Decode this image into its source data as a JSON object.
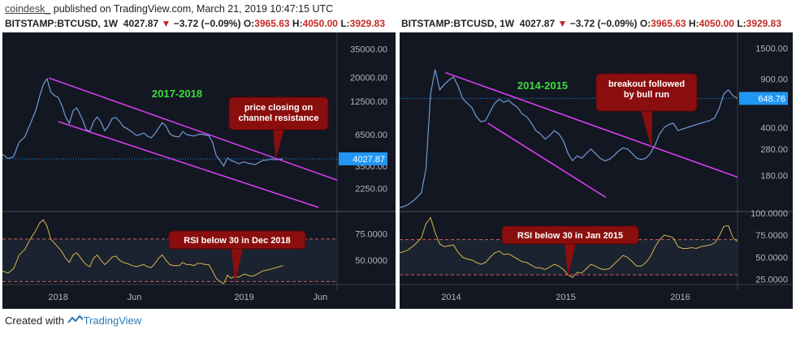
{
  "header": {
    "brand": "coindesk_",
    "published": "published on TradingView.com, March 21, 2019 10:47:15 UTC",
    "symbol_line": {
      "symbol": "BITSTAMP:BTCUSD, 1W",
      "last": "4027.87",
      "change": "−3.72 (−0.09%)",
      "o_label": "O:",
      "o": "3965.63",
      "h_label": "H:",
      "h": "4050.00",
      "l_label": "L:",
      "l": "3929.83"
    }
  },
  "footer": {
    "created": "Created with",
    "tv": "TradingView"
  },
  "colors": {
    "bg": "#131722",
    "price": "#6f9bd1",
    "channel": "#e040fb",
    "rsi": "#d6b64a",
    "callout": "#8b0e0e",
    "label_green": "#3ddc3d",
    "price_tag": "#2196f3"
  },
  "chart_data": [
    {
      "type": "line",
      "title": "2017-2018",
      "y_scale": "log",
      "y_ticks": [
        "35000.00",
        "20000.00",
        "12500.00",
        "6500.00",
        "3500.00",
        "2250.00"
      ],
      "y_tick_values": [
        35000,
        20000,
        12500,
        6500,
        3500,
        2250
      ],
      "ylim": [
        1450,
        47000
      ],
      "x_ticks": [
        "2018",
        "Jun",
        "2019",
        "Jun"
      ],
      "x_tick_values": [
        2018.0,
        2018.41,
        2019.0,
        2019.41
      ],
      "xlim": [
        2017.7,
        2019.5
      ],
      "last_price_tag": "4027.87",
      "series": [
        {
          "x": [
            2017.7,
            2017.73,
            2017.76,
            2017.79,
            2017.82,
            2017.85,
            2017.88,
            2017.9,
            2017.92,
            2017.94,
            2017.96,
            2017.98,
            2018.0,
            2018.02,
            2018.04,
            2018.06,
            2018.08,
            2018.1,
            2018.13,
            2018.15,
            2018.17,
            2018.19,
            2018.21,
            2018.23,
            2018.25,
            2018.27,
            2018.29,
            2018.31,
            2018.33,
            2018.35,
            2018.37,
            2018.4,
            2018.42,
            2018.44,
            2018.46,
            2018.48,
            2018.5,
            2018.52,
            2018.54,
            2018.56,
            2018.58,
            2018.6,
            2018.62,
            2018.65,
            2018.67,
            2018.69,
            2018.71,
            2018.73,
            2018.75,
            2018.77,
            2018.79,
            2018.81,
            2018.83,
            2018.85,
            2018.87,
            2018.89,
            2018.91,
            2018.93,
            2018.95,
            2018.97,
            2019.0,
            2019.02,
            2019.04,
            2019.06,
            2019.08,
            2019.1,
            2019.13,
            2019.15,
            2019.17,
            2019.19,
            2019.21
          ],
          "values": [
            4400,
            4050,
            4200,
            5600,
            6200,
            8000,
            10500,
            13800,
            17500,
            19500,
            15000,
            14000,
            13500,
            11500,
            9200,
            8100,
            10400,
            11000,
            8800,
            7200,
            6900,
            8400,
            9200,
            8300,
            7000,
            7700,
            8900,
            9100,
            8400,
            7600,
            7300,
            6800,
            6400,
            6500,
            6700,
            6300,
            6100,
            6600,
            7400,
            8200,
            7700,
            6600,
            6300,
            6200,
            6900,
            6500,
            6400,
            6300,
            6500,
            6550,
            6450,
            6350,
            5600,
            4300,
            3900,
            3500,
            4100,
            3900,
            3800,
            3650,
            3800,
            3700,
            3650,
            3600,
            3750,
            3900,
            3950,
            4000,
            3950,
            4000,
            4027
          ]
        }
      ],
      "rsi": {
        "y_ticks": [
          "75.0000",
          "50.0000"
        ],
        "y_tick_values": [
          75,
          50
        ],
        "ylim": [
          28,
          95
        ],
        "levels": [
          70,
          30
        ],
        "values": [
          40,
          38,
          42,
          55,
          60,
          70,
          78,
          85,
          88,
          82,
          70,
          66,
          62,
          58,
          52,
          48,
          55,
          57,
          50,
          46,
          44,
          52,
          55,
          50,
          46,
          49,
          53,
          54,
          50,
          48,
          47,
          45,
          44,
          45,
          46,
          44,
          43,
          47,
          52,
          55,
          50,
          46,
          45,
          45,
          48,
          46,
          46,
          45,
          47,
          47,
          46,
          46,
          40,
          33,
          30,
          28,
          36,
          33,
          35,
          34,
          37,
          36,
          35,
          36,
          38,
          40,
          41,
          42,
          43,
          44,
          45
        ]
      },
      "annotations": [
        "price closing on channel resistance",
        "RSI below 30 in Dec 2018"
      ]
    },
    {
      "type": "line",
      "title": "2014-2015",
      "y_scale": "log",
      "y_ticks": [
        "1500.00",
        "900.00",
        "400.00",
        "280.00",
        "180.00"
      ],
      "y_tick_values": [
        1500,
        900,
        400,
        280,
        180
      ],
      "ylim": [
        100,
        1900
      ],
      "x_ticks": [
        "2014",
        "2015",
        "2016"
      ],
      "x_tick_values": [
        2014.0,
        2015.0,
        2016.0
      ],
      "xlim": [
        2013.55,
        2016.5
      ],
      "last_price_tag": "648.76",
      "series": [
        {
          "x": [
            2013.55,
            2013.62,
            2013.68,
            2013.74,
            2013.78,
            2013.82,
            2013.86,
            2013.9,
            2013.94,
            2013.98,
            2014.02,
            2014.06,
            2014.1,
            2014.14,
            2014.18,
            2014.22,
            2014.26,
            2014.3,
            2014.34,
            2014.38,
            2014.42,
            2014.46,
            2014.5,
            2014.54,
            2014.58,
            2014.62,
            2014.66,
            2014.7,
            2014.74,
            2014.78,
            2014.82,
            2014.86,
            2014.9,
            2014.94,
            2014.98,
            2015.02,
            2015.06,
            2015.1,
            2015.14,
            2015.18,
            2015.22,
            2015.26,
            2015.3,
            2015.34,
            2015.38,
            2015.42,
            2015.46,
            2015.5,
            2015.54,
            2015.58,
            2015.62,
            2015.66,
            2015.7,
            2015.74,
            2015.78,
            2015.82,
            2015.86,
            2015.9,
            2015.94,
            2015.98,
            2016.02,
            2016.06,
            2016.1,
            2016.14,
            2016.18,
            2016.22,
            2016.26,
            2016.3,
            2016.34,
            2016.38,
            2016.42,
            2016.46,
            2016.5
          ],
          "values": [
            105,
            110,
            120,
            135,
            200,
            700,
            1050,
            750,
            820,
            880,
            930,
            800,
            650,
            600,
            560,
            480,
            440,
            450,
            520,
            600,
            640,
            610,
            630,
            590,
            560,
            500,
            480,
            430,
            380,
            360,
            330,
            350,
            380,
            360,
            320,
            260,
            230,
            250,
            240,
            260,
            280,
            260,
            240,
            230,
            235,
            250,
            270,
            285,
            280,
            260,
            240,
            235,
            240,
            260,
            300,
            360,
            400,
            420,
            430,
            380,
            390,
            400,
            410,
            420,
            430,
            440,
            450,
            470,
            550,
            700,
            750,
            680,
            650
          ]
        }
      ],
      "rsi": {
        "y_ticks": [
          "100.0000",
          "75.0000",
          "50.0000",
          "25.0000"
        ],
        "y_tick_values": [
          100,
          75,
          50,
          25
        ],
        "ylim": [
          20,
          101
        ],
        "levels": [
          70,
          30
        ],
        "values": [
          55,
          58,
          64,
          72,
          88,
          95,
          78,
          65,
          62,
          63,
          64,
          56,
          50,
          48,
          47,
          44,
          42,
          44,
          50,
          55,
          57,
          53,
          54,
          51,
          48,
          45,
          44,
          41,
          38,
          38,
          36,
          39,
          42,
          40,
          36,
          30,
          27,
          33,
          32,
          37,
          42,
          40,
          37,
          36,
          37,
          42,
          47,
          52,
          50,
          45,
          40,
          40,
          44,
          51,
          62,
          70,
          75,
          74,
          72,
          62,
          60,
          60,
          61,
          60,
          62,
          63,
          64,
          66,
          74,
          85,
          86,
          72,
          68
        ]
      },
      "annotations": [
        "breakout followed by bull run",
        "RSI below 30 in Jan 2015"
      ]
    }
  ]
}
